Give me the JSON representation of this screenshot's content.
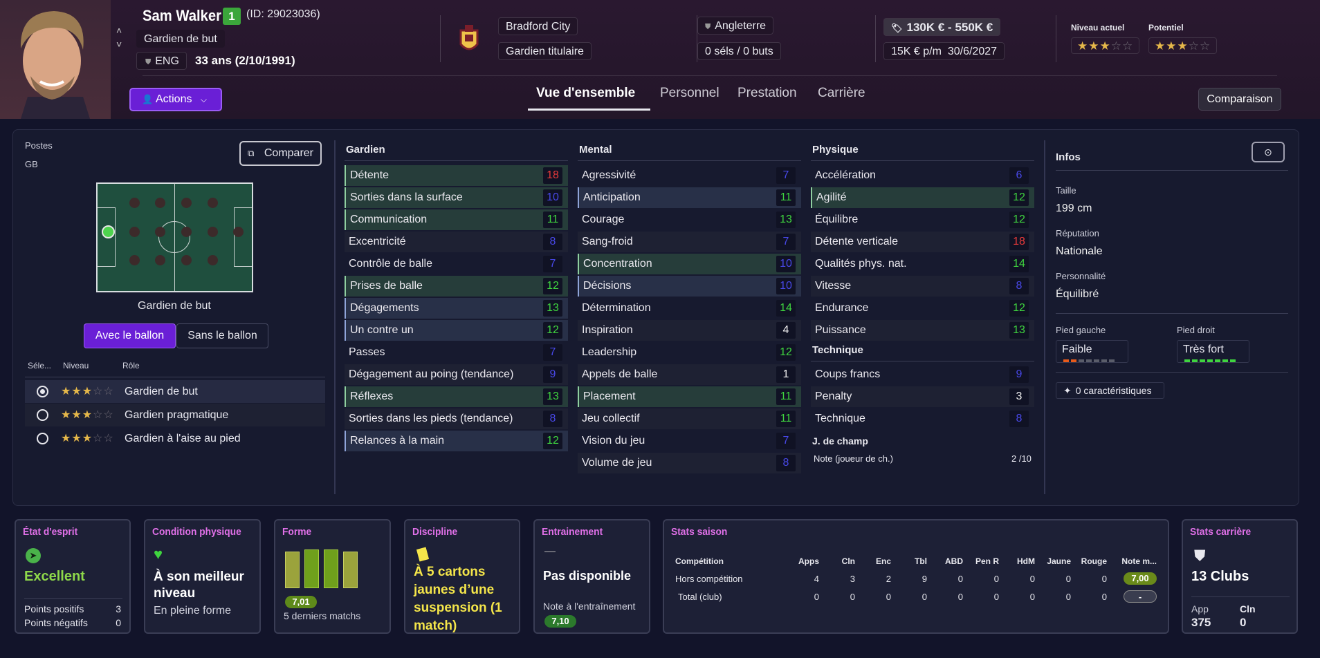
{
  "player": {
    "name": "Sam Walker",
    "ca": "1",
    "id": "(ID: 29023036)",
    "position": "Gardien de but",
    "nationality": "ENG",
    "age": "33 ans (2/10/1991)"
  },
  "club": {
    "name": "Bradford City",
    "role": "Gardien titulaire"
  },
  "intl": {
    "country": "Angleterre",
    "caps": "0 séls / 0 buts"
  },
  "finance": {
    "value": "130K € - 550K €",
    "wage": "15K € p/m",
    "expiry": "30/6/2027"
  },
  "ability": {
    "current_label": "Niveau actuel",
    "potential_label": "Potentiel",
    "current_stars": 3,
    "potential_stars": 3,
    "max_stars": 5
  },
  "actions_label": "Actions",
  "tabs": [
    "Vue d'ensemble",
    "Personnel",
    "Prestation",
    "Carrière"
  ],
  "compare_top": "Comparaison",
  "positions": {
    "label": "Postes",
    "value": "GB",
    "compare": "Comparer",
    "pitch_label": "Gardien de but",
    "toggle_on": "Avec le ballon",
    "toggle_off": "Sans le ballon"
  },
  "roles": {
    "headers": [
      "Séle...",
      "Niveau",
      "Rôle"
    ],
    "rows": [
      {
        "name": "Gardien de but",
        "stars": 3,
        "selected": true
      },
      {
        "name": "Gardien pragmatique",
        "stars": 3,
        "selected": false
      },
      {
        "name": "Gardien à l'aise au pied",
        "stars": 3,
        "selected": false
      }
    ]
  },
  "attributes": {
    "gardien": {
      "title": "Gardien",
      "rows": [
        {
          "n": "Détente",
          "v": "18",
          "c": "R",
          "h": "g"
        },
        {
          "n": "Sorties dans la surface",
          "v": "10",
          "c": "B",
          "h": "g"
        },
        {
          "n": "Communication",
          "v": "11",
          "c": "G",
          "h": "g"
        },
        {
          "n": "Excentricité",
          "v": "8",
          "c": "B",
          "h": "d"
        },
        {
          "n": "Contrôle de balle",
          "v": "7",
          "c": "B",
          "h": "n"
        },
        {
          "n": "Prises de balle",
          "v": "12",
          "c": "G",
          "h": "g"
        },
        {
          "n": "Dégagements",
          "v": "13",
          "c": "G",
          "h": "b"
        },
        {
          "n": "Un contre un",
          "v": "12",
          "c": "G",
          "h": "b"
        },
        {
          "n": "Passes",
          "v": "7",
          "c": "B",
          "h": "n"
        },
        {
          "n": "Dégagement au poing (tendance)",
          "v": "9",
          "c": "B",
          "h": "d"
        },
        {
          "n": "Réflexes",
          "v": "13",
          "c": "G",
          "h": "g"
        },
        {
          "n": "Sorties dans les pieds (tendance)",
          "v": "8",
          "c": "B",
          "h": "d"
        },
        {
          "n": "Relances à la main",
          "v": "12",
          "c": "G",
          "h": "b"
        }
      ]
    },
    "mental": {
      "title": "Mental",
      "rows": [
        {
          "n": "Agressivité",
          "v": "7",
          "c": "B",
          "h": "n"
        },
        {
          "n": "Anticipation",
          "v": "11",
          "c": "G",
          "h": "b"
        },
        {
          "n": "Courage",
          "v": "13",
          "c": "G",
          "h": "n"
        },
        {
          "n": "Sang-froid",
          "v": "7",
          "c": "B",
          "h": "d"
        },
        {
          "n": "Concentration",
          "v": "10",
          "c": "B",
          "h": "g"
        },
        {
          "n": "Décisions",
          "v": "10",
          "c": "B",
          "h": "b"
        },
        {
          "n": "Détermination",
          "v": "14",
          "c": "G",
          "h": "n"
        },
        {
          "n": "Inspiration",
          "v": "4",
          "c": "W",
          "h": "d"
        },
        {
          "n": "Leadership",
          "v": "12",
          "c": "G",
          "h": "n"
        },
        {
          "n": "Appels de balle",
          "v": "1",
          "c": "W",
          "h": "d"
        },
        {
          "n": "Placement",
          "v": "11",
          "c": "G",
          "h": "g"
        },
        {
          "n": "Jeu collectif",
          "v": "11",
          "c": "G",
          "h": "d"
        },
        {
          "n": "Vision du jeu",
          "v": "7",
          "c": "B",
          "h": "n"
        },
        {
          "n": "Volume de jeu",
          "v": "8",
          "c": "B",
          "h": "d"
        }
      ]
    },
    "physique": {
      "title": "Physique",
      "rows": [
        {
          "n": "Accélération",
          "v": "6",
          "c": "B",
          "h": "n"
        },
        {
          "n": "Agilité",
          "v": "12",
          "c": "G",
          "h": "g"
        },
        {
          "n": "Équilibre",
          "v": "12",
          "c": "G",
          "h": "n"
        },
        {
          "n": "Détente verticale",
          "v": "18",
          "c": "R",
          "h": "d"
        },
        {
          "n": "Qualités phys. nat.",
          "v": "14",
          "c": "G",
          "h": "n"
        },
        {
          "n": "Vitesse",
          "v": "8",
          "c": "B",
          "h": "d"
        },
        {
          "n": "Endurance",
          "v": "12",
          "c": "G",
          "h": "n"
        },
        {
          "n": "Puissance",
          "v": "13",
          "c": "G",
          "h": "d"
        }
      ]
    },
    "technique": {
      "title": "Technique",
      "rows": [
        {
          "n": "Coups francs",
          "v": "9",
          "c": "B",
          "h": "n"
        },
        {
          "n": "Penalty",
          "v": "3",
          "c": "W",
          "h": "d"
        },
        {
          "n": "Technique",
          "v": "8",
          "c": "B",
          "h": "n"
        }
      ]
    },
    "outfield": {
      "title": "J. de champ",
      "label": "Note (joueur de ch.)",
      "value": "2 /10"
    }
  },
  "infos": {
    "title": "Infos",
    "height_label": "Taille",
    "height": "199 cm",
    "rep_label": "Réputation",
    "rep": "Nationale",
    "pers_label": "Personnalité",
    "pers": "Équilibré",
    "left_label": "Pied gauche",
    "left": "Faible",
    "right_label": "Pied droit",
    "right": "Très fort",
    "traits": "0 caractéristiques"
  },
  "cards": {
    "morale": {
      "title": "État d'esprit",
      "value": "Excellent",
      "pos_label": "Points positifs",
      "pos": "3",
      "neg_label": "Points négatifs",
      "neg": "0"
    },
    "condition": {
      "title": "Condition physique",
      "value": "À son meilleur niveau",
      "sub": "En pleine forme"
    },
    "form": {
      "title": "Forme",
      "rating": "7,01",
      "sub": "5 derniers matchs"
    },
    "discipline": {
      "title": "Discipline",
      "text": "À 5 cartons jaunes d’une suspension (1 match)"
    },
    "training": {
      "title": "Entrainement",
      "dash": "—",
      "value": "Pas disponible",
      "note_label": "Note à l'entraînement",
      "note": "7,10"
    },
    "season": {
      "title": "Stats saison",
      "headers": [
        "Compétition",
        "Apps",
        "Cln",
        "Enc",
        "Tbl",
        "ABD",
        "Pen R",
        "HdM",
        "Jaune",
        "Rouge",
        "Note m..."
      ],
      "rows": [
        [
          "Hors compétition",
          "4",
          "3",
          "2",
          "9",
          "0",
          "0",
          "0",
          "0",
          "0",
          "7,00"
        ],
        [
          "Total (club)",
          "0",
          "0",
          "0",
          "0",
          "0",
          "0",
          "0",
          "0",
          "0",
          "-"
        ]
      ]
    },
    "career": {
      "title": "Stats carrière",
      "clubs": "13 Clubs",
      "app_label": "App",
      "app": "375",
      "cln_label": "Cln",
      "cln": "0"
    }
  },
  "colors": {
    "accent": "#6a1fd6",
    "green": "#3fd43f",
    "red": "#e83a3a",
    "blue": "#4848e8",
    "magenta": "#e070e8"
  }
}
